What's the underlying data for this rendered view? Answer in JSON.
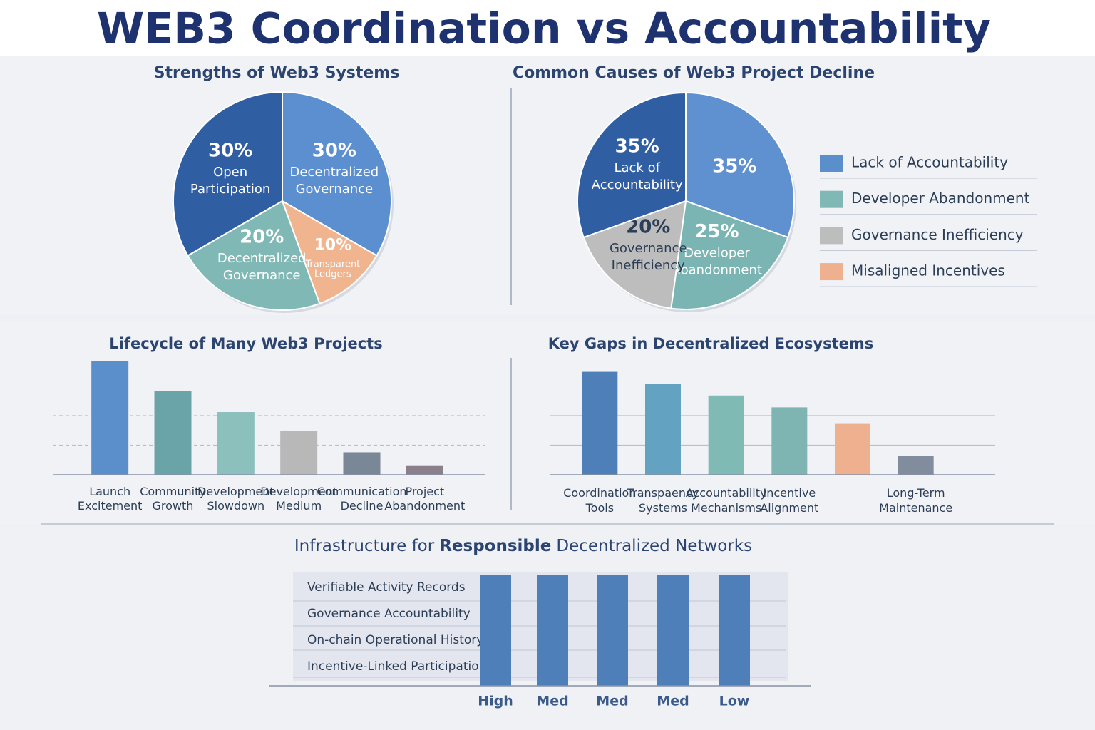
{
  "title": "WEB3 Coordination vs Accountability",
  "chart_data": [
    {
      "type": "pie",
      "title": "Strengths of Web3 Systems",
      "categories": [
        "Decentralized Governance",
        "Transparent Ledgers",
        "Decentralized Governance",
        "Open Participation"
      ],
      "values": [
        30,
        10,
        20,
        30
      ],
      "value_labels": [
        "30%",
        "10%",
        "20%",
        "30%"
      ],
      "colors": [
        "#5b8fd0",
        "#f0b48e",
        "#7fb8b5",
        "#2f5ea3"
      ]
    },
    {
      "type": "pie",
      "title": "Common Causes of Web3 Project Decline",
      "categories": [
        null,
        "Developer Abandonment",
        "Governance Inefficiency",
        "Lack of Accountability"
      ],
      "values": [
        35,
        25,
        20,
        35
      ],
      "value_labels": [
        "35%",
        "25%",
        "20%",
        "35%"
      ],
      "colors": [
        "#5f90cf",
        "#7ab5b3",
        "#bdbdbd",
        "#2f5ea3"
      ],
      "legend": [
        {
          "name": "Lack of Accountability",
          "color": "#5b8fcc"
        },
        {
          "name": "Developer Abandonment",
          "color": "#7fb8b5"
        },
        {
          "name": "Governance Inefficiency",
          "color": "#bdbdbd"
        },
        {
          "name": "Misaligned Incentives",
          "color": "#efb08f"
        }
      ]
    },
    {
      "type": "bar",
      "title": "Lifecycle of Many Web3 Projects",
      "categories": [
        "Launch Excitement",
        "Community Growth",
        "Development Slowdown",
        "Development Medium",
        "Communication Decline",
        "Project Abandonment"
      ],
      "values": [
        96,
        71,
        53,
        37,
        19,
        8
      ],
      "colors": [
        "#5b8fcc",
        "#6aa3a8",
        "#8cc0bd",
        "#b8b8b8",
        "#7a8797",
        "#8a7f8a"
      ],
      "ylim": [
        0,
        100
      ],
      "grid_lines": [
        25,
        50
      ],
      "grid_style": "dashed"
    },
    {
      "type": "bar",
      "title": "Key Gaps in Decentralized Ecosystems",
      "categories": [
        "Coordination Tools",
        "Transpaency Systems",
        "Accountability Mechanisms",
        "Incentive Alignment",
        null,
        "Long-Term Maintenance"
      ],
      "values": [
        87,
        77,
        67,
        57,
        43,
        16
      ],
      "colors": [
        "#4f7fb8",
        "#64a2c2",
        "#7fbab5",
        "#7eb5b3",
        "#eeb08f",
        "#818c9c"
      ],
      "ylim": [
        0,
        100
      ],
      "grid_lines": [
        25,
        50
      ],
      "grid_style": "solid"
    },
    {
      "type": "rowbar",
      "title": [
        "Infrastructure for",
        "Responsible",
        "Decentralized Networks"
      ],
      "rows": [
        "Verifiable Activity Records",
        "Governance Accountability",
        "On-chain Operational History",
        "Incentive-Linked Participation"
      ],
      "categories": [
        "High",
        "Med",
        "Med",
        "Med",
        "Low"
      ],
      "values": [
        4,
        4,
        4,
        4,
        4
      ],
      "ylim": [
        0,
        4
      ],
      "color": "#4f7fb8"
    }
  ]
}
